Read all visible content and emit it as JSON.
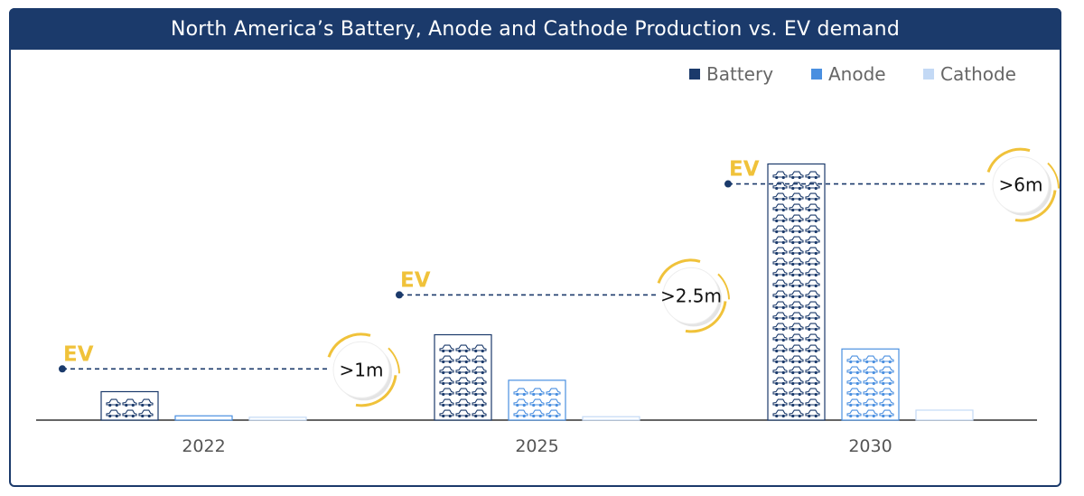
{
  "chart_data": {
    "type": "bar",
    "title": "North America’s Battery, Anode and Cathode Production vs. EV demand",
    "categories": [
      "2022",
      "2025",
      "2030"
    ],
    "series": [
      {
        "name": "Battery",
        "color": "#1b3a6b",
        "values": [
          1.0,
          3.0,
          9.0
        ]
      },
      {
        "name": "Anode",
        "color": "#4a8fe0",
        "values": [
          0.15,
          1.4,
          2.5
        ]
      },
      {
        "name": "Cathode",
        "color": "#c3d9f5",
        "values": [
          0.1,
          0.12,
          0.35
        ]
      }
    ],
    "ev_demand": [
      {
        "label": "EV",
        "value_label": ">1m",
        "value": 1.8
      },
      {
        "label": "EV",
        "value_label": ">2.5m",
        "value": 4.4
      },
      {
        "label": "EV",
        "value_label": ">6m",
        "value": 8.3
      }
    ],
    "ylim": [
      0,
      10
    ],
    "legend": "top-right",
    "xlabel": "",
    "ylabel": ""
  },
  "colors": {
    "navy": "#1b3a6b",
    "gold": "#f0c23a",
    "axis": "#333333",
    "tick_text": "#555555"
  }
}
